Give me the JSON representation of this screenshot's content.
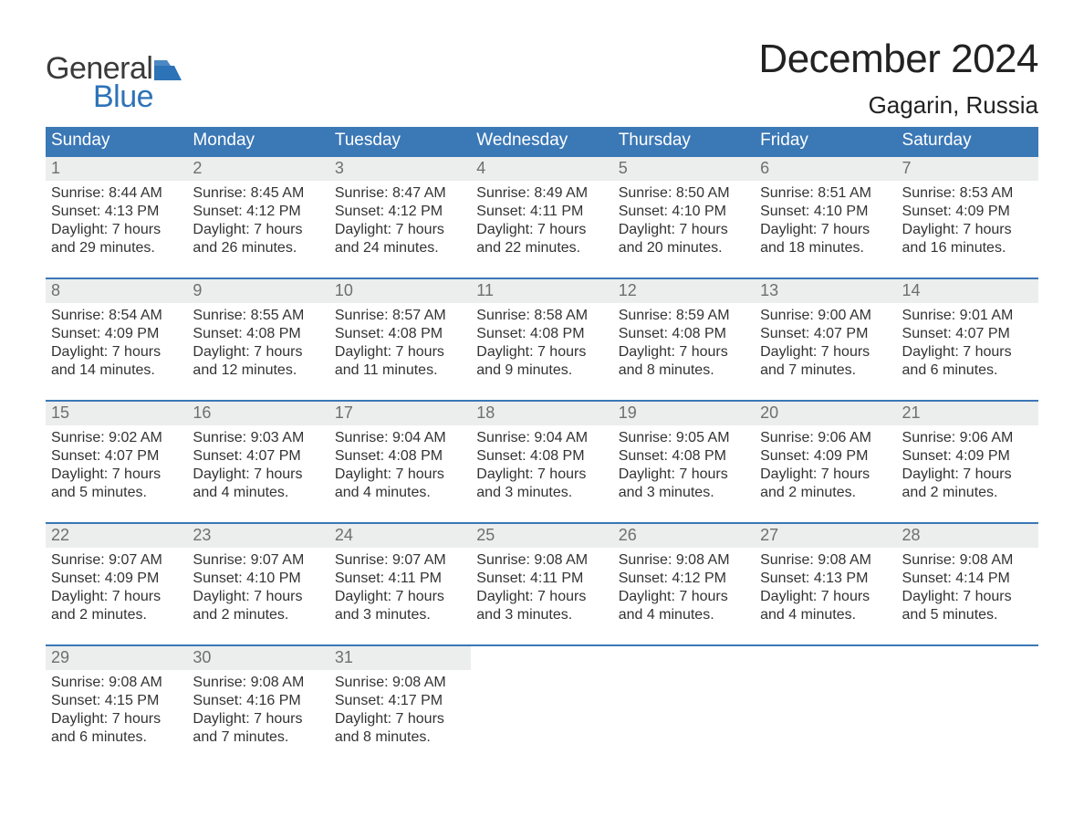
{
  "logo": {
    "word1": "General",
    "word2": "Blue",
    "flag_color": "#2d73b8"
  },
  "title": "December 2024",
  "location": "Gagarin, Russia",
  "colors": {
    "header_bg": "#3b78b6",
    "header_text": "#ffffff",
    "daynum_bg": "#eceded",
    "daynum_text": "#6f6f6f",
    "body_text": "#333333",
    "week_border": "#3b78b6",
    "page_bg": "#ffffff"
  },
  "typography": {
    "title_fontsize": 44,
    "location_fontsize": 26,
    "dow_fontsize": 19,
    "daynum_fontsize": 18,
    "body_fontsize": 16
  },
  "layout": {
    "columns": 7,
    "rows": 5
  },
  "days_of_week": [
    "Sunday",
    "Monday",
    "Tuesday",
    "Wednesday",
    "Thursday",
    "Friday",
    "Saturday"
  ],
  "weeks": [
    [
      {
        "n": "1",
        "sunrise": "Sunrise: 8:44 AM",
        "sunset": "Sunset: 4:13 PM",
        "d1": "Daylight: 7 hours",
        "d2": "and 29 minutes."
      },
      {
        "n": "2",
        "sunrise": "Sunrise: 8:45 AM",
        "sunset": "Sunset: 4:12 PM",
        "d1": "Daylight: 7 hours",
        "d2": "and 26 minutes."
      },
      {
        "n": "3",
        "sunrise": "Sunrise: 8:47 AM",
        "sunset": "Sunset: 4:12 PM",
        "d1": "Daylight: 7 hours",
        "d2": "and 24 minutes."
      },
      {
        "n": "4",
        "sunrise": "Sunrise: 8:49 AM",
        "sunset": "Sunset: 4:11 PM",
        "d1": "Daylight: 7 hours",
        "d2": "and 22 minutes."
      },
      {
        "n": "5",
        "sunrise": "Sunrise: 8:50 AM",
        "sunset": "Sunset: 4:10 PM",
        "d1": "Daylight: 7 hours",
        "d2": "and 20 minutes."
      },
      {
        "n": "6",
        "sunrise": "Sunrise: 8:51 AM",
        "sunset": "Sunset: 4:10 PM",
        "d1": "Daylight: 7 hours",
        "d2": "and 18 minutes."
      },
      {
        "n": "7",
        "sunrise": "Sunrise: 8:53 AM",
        "sunset": "Sunset: 4:09 PM",
        "d1": "Daylight: 7 hours",
        "d2": "and 16 minutes."
      }
    ],
    [
      {
        "n": "8",
        "sunrise": "Sunrise: 8:54 AM",
        "sunset": "Sunset: 4:09 PM",
        "d1": "Daylight: 7 hours",
        "d2": "and 14 minutes."
      },
      {
        "n": "9",
        "sunrise": "Sunrise: 8:55 AM",
        "sunset": "Sunset: 4:08 PM",
        "d1": "Daylight: 7 hours",
        "d2": "and 12 minutes."
      },
      {
        "n": "10",
        "sunrise": "Sunrise: 8:57 AM",
        "sunset": "Sunset: 4:08 PM",
        "d1": "Daylight: 7 hours",
        "d2": "and 11 minutes."
      },
      {
        "n": "11",
        "sunrise": "Sunrise: 8:58 AM",
        "sunset": "Sunset: 4:08 PM",
        "d1": "Daylight: 7 hours",
        "d2": "and 9 minutes."
      },
      {
        "n": "12",
        "sunrise": "Sunrise: 8:59 AM",
        "sunset": "Sunset: 4:08 PM",
        "d1": "Daylight: 7 hours",
        "d2": "and 8 minutes."
      },
      {
        "n": "13",
        "sunrise": "Sunrise: 9:00 AM",
        "sunset": "Sunset: 4:07 PM",
        "d1": "Daylight: 7 hours",
        "d2": "and 7 minutes."
      },
      {
        "n": "14",
        "sunrise": "Sunrise: 9:01 AM",
        "sunset": "Sunset: 4:07 PM",
        "d1": "Daylight: 7 hours",
        "d2": "and 6 minutes."
      }
    ],
    [
      {
        "n": "15",
        "sunrise": "Sunrise: 9:02 AM",
        "sunset": "Sunset: 4:07 PM",
        "d1": "Daylight: 7 hours",
        "d2": "and 5 minutes."
      },
      {
        "n": "16",
        "sunrise": "Sunrise: 9:03 AM",
        "sunset": "Sunset: 4:07 PM",
        "d1": "Daylight: 7 hours",
        "d2": "and 4 minutes."
      },
      {
        "n": "17",
        "sunrise": "Sunrise: 9:04 AM",
        "sunset": "Sunset: 4:08 PM",
        "d1": "Daylight: 7 hours",
        "d2": "and 4 minutes."
      },
      {
        "n": "18",
        "sunrise": "Sunrise: 9:04 AM",
        "sunset": "Sunset: 4:08 PM",
        "d1": "Daylight: 7 hours",
        "d2": "and 3 minutes."
      },
      {
        "n": "19",
        "sunrise": "Sunrise: 9:05 AM",
        "sunset": "Sunset: 4:08 PM",
        "d1": "Daylight: 7 hours",
        "d2": "and 3 minutes."
      },
      {
        "n": "20",
        "sunrise": "Sunrise: 9:06 AM",
        "sunset": "Sunset: 4:09 PM",
        "d1": "Daylight: 7 hours",
        "d2": "and 2 minutes."
      },
      {
        "n": "21",
        "sunrise": "Sunrise: 9:06 AM",
        "sunset": "Sunset: 4:09 PM",
        "d1": "Daylight: 7 hours",
        "d2": "and 2 minutes."
      }
    ],
    [
      {
        "n": "22",
        "sunrise": "Sunrise: 9:07 AM",
        "sunset": "Sunset: 4:09 PM",
        "d1": "Daylight: 7 hours",
        "d2": "and 2 minutes."
      },
      {
        "n": "23",
        "sunrise": "Sunrise: 9:07 AM",
        "sunset": "Sunset: 4:10 PM",
        "d1": "Daylight: 7 hours",
        "d2": "and 2 minutes."
      },
      {
        "n": "24",
        "sunrise": "Sunrise: 9:07 AM",
        "sunset": "Sunset: 4:11 PM",
        "d1": "Daylight: 7 hours",
        "d2": "and 3 minutes."
      },
      {
        "n": "25",
        "sunrise": "Sunrise: 9:08 AM",
        "sunset": "Sunset: 4:11 PM",
        "d1": "Daylight: 7 hours",
        "d2": "and 3 minutes."
      },
      {
        "n": "26",
        "sunrise": "Sunrise: 9:08 AM",
        "sunset": "Sunset: 4:12 PM",
        "d1": "Daylight: 7 hours",
        "d2": "and 4 minutes."
      },
      {
        "n": "27",
        "sunrise": "Sunrise: 9:08 AM",
        "sunset": "Sunset: 4:13 PM",
        "d1": "Daylight: 7 hours",
        "d2": "and 4 minutes."
      },
      {
        "n": "28",
        "sunrise": "Sunrise: 9:08 AM",
        "sunset": "Sunset: 4:14 PM",
        "d1": "Daylight: 7 hours",
        "d2": "and 5 minutes."
      }
    ],
    [
      {
        "n": "29",
        "sunrise": "Sunrise: 9:08 AM",
        "sunset": "Sunset: 4:15 PM",
        "d1": "Daylight: 7 hours",
        "d2": "and 6 minutes."
      },
      {
        "n": "30",
        "sunrise": "Sunrise: 9:08 AM",
        "sunset": "Sunset: 4:16 PM",
        "d1": "Daylight: 7 hours",
        "d2": "and 7 minutes."
      },
      {
        "n": "31",
        "sunrise": "Sunrise: 9:08 AM",
        "sunset": "Sunset: 4:17 PM",
        "d1": "Daylight: 7 hours",
        "d2": "and 8 minutes."
      },
      null,
      null,
      null,
      null
    ]
  ]
}
